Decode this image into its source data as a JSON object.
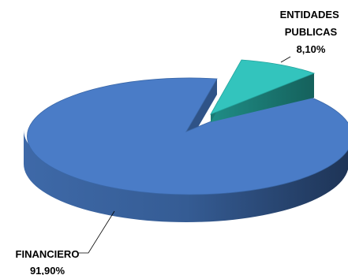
{
  "chart_data": {
    "type": "pie",
    "title": "",
    "slices": [
      {
        "label": "FINANCIERO",
        "value": 91.9,
        "value_label": "91,90%",
        "color": "#4a7cc7"
      },
      {
        "label": "ENTIDADES PUBLICAS",
        "label_lines": [
          "ENTIDADES",
          "PUBLICAS"
        ],
        "value": 8.1,
        "value_label": "8,10%",
        "color": "#33c4bd",
        "exploded": true
      }
    ],
    "style": "3d-exploded",
    "legend": "none"
  }
}
